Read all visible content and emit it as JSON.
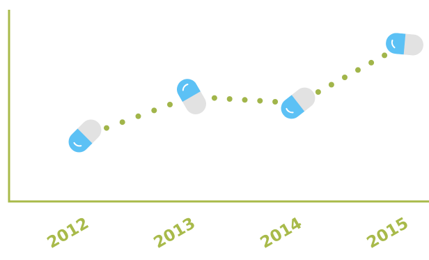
{
  "colors": {
    "axis": "#a8ba4a",
    "dot": "#a1b54a",
    "label": "#a8ba4a",
    "capsule_blue": "#5bc1f5",
    "capsule_grey": "#e2e2e2"
  },
  "icons": {
    "data_marker": "capsule-pill-icon"
  },
  "chart_data": {
    "type": "line",
    "title": "",
    "xlabel": "",
    "ylabel": "",
    "categories": [
      "2012",
      "2013",
      "2014",
      "2015"
    ],
    "series": [
      {
        "values": [
          1.0,
          1.6,
          1.5,
          2.4
        ]
      }
    ],
    "ylim": [
      0,
      3.2
    ],
    "grid": false,
    "line_style": "dotted",
    "y_axis_ticks": false
  }
}
